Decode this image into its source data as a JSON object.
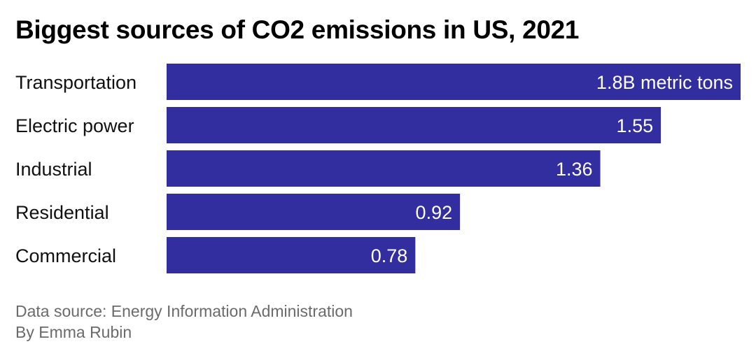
{
  "chart_data": {
    "type": "bar",
    "orientation": "horizontal",
    "title": "Biggest sources of CO2 emissions in US, 2021",
    "xlabel": "",
    "ylabel": "",
    "unit": "billion metric tons",
    "categories": [
      "Transportation",
      "Electric power",
      "Industrial",
      "Residential",
      "Commercial"
    ],
    "values": [
      1.8,
      1.55,
      1.36,
      0.92,
      0.78
    ],
    "value_labels": [
      "1.8B metric tons",
      "1.55",
      "1.36",
      "0.92",
      "0.78"
    ],
    "xlim": [
      0,
      1.8
    ],
    "grid": false,
    "legend": "none",
    "bar_color": "#332e9f"
  },
  "footer": {
    "source": "Data source: Energy Information Administration",
    "byline": "By Emma Rubin"
  }
}
